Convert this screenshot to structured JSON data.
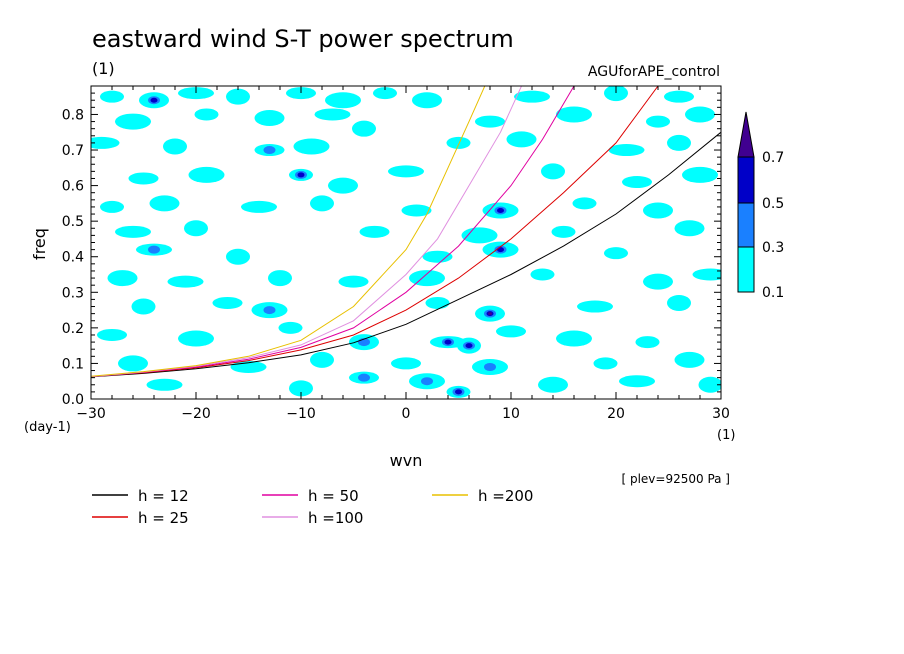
{
  "chart_data": {
    "type": "line",
    "title": "eastward wind S-T power spectrum",
    "subtitle": "(1)",
    "experiment": "AGUforAPE_control",
    "xlabel": "wvn",
    "ylabel": "freq",
    "xunit": "(1)",
    "yunit": "(day-1)",
    "level_note": "[ plev=92500 Pa ]",
    "xlim": [
      -30,
      30
    ],
    "ylim": [
      0.0,
      0.88
    ],
    "xticks": [
      -30,
      -20,
      -10,
      0,
      10,
      20,
      30
    ],
    "yticks": [
      0.0,
      0.1,
      0.2,
      0.3,
      0.4,
      0.5,
      0.6,
      0.7,
      0.8
    ],
    "series": [
      {
        "name": "h = 12",
        "color": "#000000",
        "x": [
          -30,
          -25,
          -20,
          -15,
          -10,
          -5,
          0,
          5,
          10,
          15,
          20,
          25,
          30
        ],
        "y": [
          0.062,
          0.072,
          0.085,
          0.102,
          0.124,
          0.158,
          0.21,
          0.28,
          0.35,
          0.43,
          0.52,
          0.63,
          0.75
        ]
      },
      {
        "name": "h = 25",
        "color": "#dd0000",
        "x": [
          -30,
          -25,
          -20,
          -15,
          -10,
          -5,
          0,
          5,
          10,
          15,
          20,
          24
        ],
        "y": [
          0.063,
          0.074,
          0.088,
          0.108,
          0.138,
          0.18,
          0.25,
          0.34,
          0.45,
          0.58,
          0.72,
          0.88
        ]
      },
      {
        "name": "h = 50",
        "color": "#e000a0",
        "x": [
          -30,
          -25,
          -20,
          -15,
          -10,
          -5,
          0,
          5,
          10,
          13,
          16
        ],
        "y": [
          0.063,
          0.075,
          0.09,
          0.112,
          0.145,
          0.2,
          0.3,
          0.43,
          0.6,
          0.73,
          0.88
        ]
      },
      {
        "name": "h =100",
        "color": "#e090e0",
        "x": [
          -30,
          -25,
          -20,
          -15,
          -10,
          -5,
          0,
          3,
          6,
          9,
          11
        ],
        "y": [
          0.063,
          0.076,
          0.092,
          0.116,
          0.152,
          0.22,
          0.35,
          0.45,
          0.6,
          0.75,
          0.88
        ]
      },
      {
        "name": "h =200",
        "color": "#e8c000",
        "x": [
          -30,
          -25,
          -20,
          -15,
          -10,
          -5,
          0,
          2,
          4,
          6,
          7.5
        ],
        "y": [
          0.064,
          0.077,
          0.094,
          0.12,
          0.165,
          0.26,
          0.42,
          0.52,
          0.65,
          0.78,
          0.88
        ]
      }
    ],
    "colorbar": {
      "levels": [
        "0.1",
        "0.3",
        "0.5",
        "0.7"
      ],
      "colors": [
        "#00ffff",
        "#1a80ff",
        "#0000c8",
        "#400090"
      ]
    },
    "shading_blobs": [
      {
        "x": -28,
        "y": 0.85,
        "l": 0
      },
      {
        "x": -24,
        "y": 0.84,
        "l": 2
      },
      {
        "x": -20,
        "y": 0.86,
        "l": 0
      },
      {
        "x": -16,
        "y": 0.85,
        "l": 0
      },
      {
        "x": -10,
        "y": 0.86,
        "l": 0
      },
      {
        "x": -6,
        "y": 0.84,
        "l": 0
      },
      {
        "x": -2,
        "y": 0.86,
        "l": 0
      },
      {
        "x": 2,
        "y": 0.84,
        "l": 0
      },
      {
        "x": 12,
        "y": 0.85,
        "l": 0
      },
      {
        "x": 20,
        "y": 0.86,
        "l": 0
      },
      {
        "x": 26,
        "y": 0.85,
        "l": 0
      },
      {
        "x": -26,
        "y": 0.78,
        "l": 0
      },
      {
        "x": -19,
        "y": 0.8,
        "l": 0
      },
      {
        "x": -13,
        "y": 0.79,
        "l": 0
      },
      {
        "x": -7,
        "y": 0.8,
        "l": 0
      },
      {
        "x": -4,
        "y": 0.76,
        "l": 0
      },
      {
        "x": 8,
        "y": 0.78,
        "l": 0
      },
      {
        "x": 16,
        "y": 0.8,
        "l": 0
      },
      {
        "x": 24,
        "y": 0.78,
        "l": 0
      },
      {
        "x": 28,
        "y": 0.8,
        "l": 0
      },
      {
        "x": -29,
        "y": 0.72,
        "l": 0
      },
      {
        "x": -22,
        "y": 0.71,
        "l": 0
      },
      {
        "x": -13,
        "y": 0.7,
        "l": 1
      },
      {
        "x": -9,
        "y": 0.71,
        "l": 0
      },
      {
        "x": 5,
        "y": 0.72,
        "l": 0
      },
      {
        "x": 11,
        "y": 0.73,
        "l": 0
      },
      {
        "x": 21,
        "y": 0.7,
        "l": 0
      },
      {
        "x": 26,
        "y": 0.72,
        "l": 0
      },
      {
        "x": -25,
        "y": 0.62,
        "l": 0
      },
      {
        "x": -19,
        "y": 0.63,
        "l": 0
      },
      {
        "x": -10,
        "y": 0.63,
        "l": 2
      },
      {
        "x": -6,
        "y": 0.6,
        "l": 0
      },
      {
        "x": 0,
        "y": 0.64,
        "l": 0
      },
      {
        "x": 14,
        "y": 0.64,
        "l": 0
      },
      {
        "x": 22,
        "y": 0.61,
        "l": 0
      },
      {
        "x": 28,
        "y": 0.63,
        "l": 0
      },
      {
        "x": -28,
        "y": 0.54,
        "l": 0
      },
      {
        "x": -23,
        "y": 0.55,
        "l": 0
      },
      {
        "x": -14,
        "y": 0.54,
        "l": 0
      },
      {
        "x": -8,
        "y": 0.55,
        "l": 0
      },
      {
        "x": 1,
        "y": 0.53,
        "l": 0
      },
      {
        "x": 9,
        "y": 0.53,
        "l": 2
      },
      {
        "x": 17,
        "y": 0.55,
        "l": 0
      },
      {
        "x": 24,
        "y": 0.53,
        "l": 0
      },
      {
        "x": -26,
        "y": 0.47,
        "l": 0
      },
      {
        "x": -20,
        "y": 0.48,
        "l": 0
      },
      {
        "x": -3,
        "y": 0.47,
        "l": 0
      },
      {
        "x": 7,
        "y": 0.46,
        "l": 0
      },
      {
        "x": 15,
        "y": 0.47,
        "l": 0
      },
      {
        "x": 27,
        "y": 0.48,
        "l": 0
      },
      {
        "x": -24,
        "y": 0.42,
        "l": 1
      },
      {
        "x": -16,
        "y": 0.4,
        "l": 0
      },
      {
        "x": 3,
        "y": 0.4,
        "l": 0
      },
      {
        "x": 9,
        "y": 0.42,
        "l": 2
      },
      {
        "x": 20,
        "y": 0.41,
        "l": 0
      },
      {
        "x": -27,
        "y": 0.34,
        "l": 0
      },
      {
        "x": -21,
        "y": 0.33,
        "l": 0
      },
      {
        "x": -12,
        "y": 0.34,
        "l": 0
      },
      {
        "x": -5,
        "y": 0.33,
        "l": 0
      },
      {
        "x": 2,
        "y": 0.34,
        "l": 0
      },
      {
        "x": 13,
        "y": 0.35,
        "l": 0
      },
      {
        "x": 24,
        "y": 0.33,
        "l": 0
      },
      {
        "x": 29,
        "y": 0.35,
        "l": 0
      },
      {
        "x": -25,
        "y": 0.26,
        "l": 0
      },
      {
        "x": -17,
        "y": 0.27,
        "l": 0
      },
      {
        "x": -13,
        "y": 0.25,
        "l": 1
      },
      {
        "x": 3,
        "y": 0.27,
        "l": 0
      },
      {
        "x": 8,
        "y": 0.24,
        "l": 3
      },
      {
        "x": 18,
        "y": 0.26,
        "l": 0
      },
      {
        "x": 26,
        "y": 0.27,
        "l": 0
      },
      {
        "x": -28,
        "y": 0.18,
        "l": 0
      },
      {
        "x": -20,
        "y": 0.17,
        "l": 0
      },
      {
        "x": -11,
        "y": 0.2,
        "l": 0
      },
      {
        "x": -4,
        "y": 0.16,
        "l": 1
      },
      {
        "x": 4,
        "y": 0.16,
        "l": 2
      },
      {
        "x": 6,
        "y": 0.15,
        "l": 2
      },
      {
        "x": 10,
        "y": 0.19,
        "l": 0
      },
      {
        "x": 16,
        "y": 0.17,
        "l": 0
      },
      {
        "x": 23,
        "y": 0.16,
        "l": 0
      },
      {
        "x": -26,
        "y": 0.1,
        "l": 0
      },
      {
        "x": -15,
        "y": 0.09,
        "l": 0
      },
      {
        "x": -8,
        "y": 0.11,
        "l": 0
      },
      {
        "x": 0,
        "y": 0.1,
        "l": 0
      },
      {
        "x": 8,
        "y": 0.09,
        "l": 1
      },
      {
        "x": 19,
        "y": 0.1,
        "l": 0
      },
      {
        "x": 27,
        "y": 0.11,
        "l": 0
      },
      {
        "x": -23,
        "y": 0.04,
        "l": 0
      },
      {
        "x": -10,
        "y": 0.03,
        "l": 0
      },
      {
        "x": -4,
        "y": 0.06,
        "l": 1
      },
      {
        "x": 2,
        "y": 0.05,
        "l": 1
      },
      {
        "x": 5,
        "y": 0.02,
        "l": 2
      },
      {
        "x": 14,
        "y": 0.04,
        "l": 0
      },
      {
        "x": 22,
        "y": 0.05,
        "l": 0
      },
      {
        "x": 29,
        "y": 0.04,
        "l": 0
      }
    ]
  }
}
